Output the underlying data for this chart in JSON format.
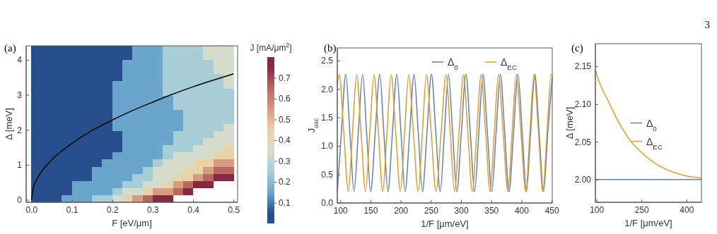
{
  "chart_data": [
    {
      "type": "heatmap",
      "xlabel": "F [eV/μm]",
      "ylabel": "Δ [meV]",
      "clabel": "J [mA/μm$^{2}$]",
      "annotations": [
        "(a)"
      ],
      "x": [
        0.0125,
        0.0375,
        0.0625,
        0.0875,
        0.1125,
        0.1375,
        0.1625,
        0.1875,
        0.2125,
        0.2375,
        0.2625,
        0.2875,
        0.3125,
        0.3375,
        0.3625,
        0.3875,
        0.4125,
        0.4375,
        0.4625,
        0.4875
      ],
      "cells": [
        [
          0.05,
          0.05,
          0.05,
          0.05,
          0.05,
          0.05,
          0.05,
          0.05,
          0.05,
          0.05,
          0.15,
          0.15,
          0.15,
          0.25,
          0.25,
          0.25,
          0.25,
          0.35,
          0.35,
          0.35
        ],
        [
          0.05,
          0.05,
          0.05,
          0.05,
          0.05,
          0.05,
          0.05,
          0.05,
          0.05,
          0.05,
          0.15,
          0.15,
          0.15,
          0.25,
          0.25,
          0.25,
          0.25,
          0.35,
          0.35,
          0.35
        ],
        [
          0.05,
          0.05,
          0.05,
          0.05,
          0.05,
          0.05,
          0.05,
          0.05,
          0.05,
          0.15,
          0.15,
          0.15,
          0.15,
          0.25,
          0.25,
          0.25,
          0.25,
          0.25,
          0.35,
          0.35
        ],
        [
          0.05,
          0.05,
          0.05,
          0.05,
          0.05,
          0.05,
          0.05,
          0.05,
          0.05,
          0.15,
          0.15,
          0.15,
          0.15,
          0.25,
          0.25,
          0.25,
          0.25,
          0.25,
          0.35,
          0.35
        ],
        [
          0.05,
          0.05,
          0.05,
          0.05,
          0.05,
          0.05,
          0.05,
          0.05,
          0.05,
          0.15,
          0.15,
          0.15,
          0.15,
          0.25,
          0.25,
          0.25,
          0.25,
          0.25,
          0.25,
          0.35
        ],
        [
          0.05,
          0.05,
          0.05,
          0.05,
          0.05,
          0.05,
          0.05,
          0.05,
          0.15,
          0.15,
          0.15,
          0.15,
          0.15,
          0.25,
          0.25,
          0.25,
          0.25,
          0.25,
          0.25,
          0.35
        ],
        [
          0.05,
          0.05,
          0.05,
          0.05,
          0.05,
          0.05,
          0.05,
          0.05,
          0.15,
          0.15,
          0.15,
          0.15,
          0.15,
          0.25,
          0.25,
          0.25,
          0.25,
          0.25,
          0.25,
          0.25
        ],
        [
          0.05,
          0.05,
          0.05,
          0.05,
          0.05,
          0.05,
          0.05,
          0.05,
          0.15,
          0.15,
          0.15,
          0.15,
          0.15,
          0.15,
          0.25,
          0.25,
          0.25,
          0.25,
          0.25,
          0.25
        ],
        [
          0.05,
          0.05,
          0.05,
          0.05,
          0.05,
          0.05,
          0.05,
          0.05,
          0.15,
          0.15,
          0.15,
          0.15,
          0.15,
          0.15,
          0.25,
          0.25,
          0.25,
          0.25,
          0.25,
          0.25
        ],
        [
          0.05,
          0.05,
          0.05,
          0.05,
          0.05,
          0.05,
          0.05,
          0.05,
          0.15,
          0.15,
          0.15,
          0.15,
          0.15,
          0.15,
          0.15,
          0.25,
          0.25,
          0.25,
          0.25,
          0.25
        ],
        [
          0.05,
          0.05,
          0.05,
          0.05,
          0.05,
          0.05,
          0.05,
          0.05,
          0.15,
          0.15,
          0.15,
          0.15,
          0.15,
          0.15,
          0.15,
          0.25,
          0.25,
          0.25,
          0.25,
          0.25
        ],
        [
          0.05,
          0.05,
          0.05,
          0.05,
          0.05,
          0.05,
          0.05,
          0.05,
          0.15,
          0.15,
          0.15,
          0.15,
          0.15,
          0.15,
          0.15,
          0.25,
          0.25,
          0.25,
          0.25,
          0.35
        ],
        [
          0.05,
          0.05,
          0.05,
          0.05,
          0.05,
          0.05,
          0.05,
          0.05,
          0.05,
          0.15,
          0.15,
          0.15,
          0.15,
          0.15,
          0.25,
          0.25,
          0.25,
          0.25,
          0.35,
          0.35
        ],
        [
          0.05,
          0.05,
          0.05,
          0.05,
          0.05,
          0.05,
          0.05,
          0.05,
          0.05,
          0.15,
          0.15,
          0.15,
          0.15,
          0.15,
          0.25,
          0.25,
          0.25,
          0.35,
          0.35,
          0.35
        ],
        [
          0.05,
          0.05,
          0.05,
          0.05,
          0.05,
          0.05,
          0.05,
          0.05,
          0.05,
          0.15,
          0.15,
          0.15,
          0.15,
          0.25,
          0.25,
          0.25,
          0.35,
          0.35,
          0.35,
          0.45
        ],
        [
          0.05,
          0.05,
          0.05,
          0.05,
          0.05,
          0.05,
          0.05,
          0.05,
          0.15,
          0.15,
          0.15,
          0.15,
          0.15,
          0.25,
          0.35,
          0.35,
          0.35,
          0.35,
          0.45,
          0.45
        ],
        [
          0.05,
          0.05,
          0.05,
          0.05,
          0.05,
          0.05,
          0.05,
          0.15,
          0.15,
          0.15,
          0.15,
          0.15,
          0.25,
          0.35,
          0.35,
          0.35,
          0.45,
          0.45,
          0.55,
          0.55
        ],
        [
          0.05,
          0.05,
          0.05,
          0.05,
          0.05,
          0.05,
          0.15,
          0.15,
          0.15,
          0.15,
          0.15,
          0.25,
          0.35,
          0.35,
          0.35,
          0.45,
          0.45,
          0.55,
          0.65,
          0.65
        ],
        [
          0.05,
          0.05,
          0.05,
          0.05,
          0.05,
          0.05,
          0.15,
          0.15,
          0.15,
          0.15,
          0.25,
          0.25,
          0.35,
          0.35,
          0.45,
          0.45,
          0.55,
          0.65,
          0.75,
          0.75
        ],
        [
          0.05,
          0.05,
          0.05,
          0.05,
          0.15,
          0.15,
          0.15,
          0.15,
          0.15,
          0.25,
          0.25,
          0.35,
          0.35,
          0.45,
          0.55,
          0.65,
          0.75,
          0.75,
          null,
          null
        ],
        [
          0.05,
          0.05,
          0.05,
          0.05,
          0.15,
          0.15,
          0.15,
          0.15,
          0.25,
          0.35,
          0.35,
          0.45,
          0.55,
          0.55,
          0.65,
          0.75,
          null,
          null,
          null,
          null
        ],
        [
          0.05,
          0.05,
          0.05,
          0.15,
          0.15,
          0.15,
          0.25,
          0.25,
          0.35,
          0.45,
          0.55,
          0.65,
          0.75,
          0.75,
          null,
          null,
          null,
          null,
          null,
          null
        ]
      ],
      "colors": [
        "#264f8b",
        "#6aa6cb",
        "#a7cdd7",
        "#d5dccc",
        "#e9d3a9",
        "#d99b7f",
        "#bb6661",
        "#86283f"
      ],
      "clim": [
        0,
        0.8
      ],
      "cticks": [
        0.1,
        0.2,
        0.3,
        0.4,
        0.5,
        0.6,
        0.7
      ],
      "xlim": [
        -0.013,
        0.51
      ],
      "xticks": [
        {
          "value": 0,
          "label": "0.0"
        },
        0.1,
        0.2,
        0.3,
        0.4,
        0.5
      ],
      "ylim": [
        -0.07,
        4.4
      ],
      "yticks": [
        0,
        1,
        2,
        3,
        4
      ],
      "series": [
        {
          "type": "line",
          "color": "#000000",
          "x": [
            0,
            0.005,
            0.01,
            0.02,
            0.04,
            0.06,
            0.08,
            0.1,
            0.15,
            0.2,
            0.25,
            0.3,
            0.35,
            0.4,
            0.45,
            0.5
          ],
          "values": [
            0,
            0.36,
            0.51,
            0.72,
            1.02,
            1.25,
            1.44,
            1.61,
            1.98,
            2.28,
            2.55,
            2.79,
            3.02,
            3.23,
            3.42,
            3.6
          ]
        }
      ]
    },
    {
      "type": "line",
      "xlabel": "1/F [μm/eV]",
      "ylabel": "J$_{osc}$",
      "annotations": [
        "(b)"
      ],
      "legend": "top right",
      "xlim": [
        95,
        451
      ],
      "xticks": [
        100,
        150,
        200,
        250,
        300,
        350,
        400,
        450
      ],
      "ylim": [
        0,
        2.72
      ],
      "yticks": [
        {
          "value": 0,
          "label": "0.0"
        },
        0.5,
        {
          "value": 1,
          "label": "1.0"
        },
        1.5,
        {
          "value": 2,
          "label": "2.0"
        },
        2.5
      ],
      "series": [
        {
          "name": "Δ$_{0}$",
          "color": "#5e81b5",
          "x": [
            95.2,
            101.7,
            109.0,
            115.9,
            122.7,
            129.8,
            136.9,
            143.6,
            150.3,
            157.8,
            165.3,
            172.1,
            178.9,
            186.3,
            193.6,
            200.5,
            207.3,
            214.8,
            222.2,
            229.1,
            236.0,
            243.5,
            250.9,
            258.2,
            265.5,
            272.4,
            279.2,
            286.1,
            293.0,
            300.5,
            308.0,
            315.3,
            322.5,
            329.4,
            336.3,
            343.6,
            350.9,
            358.0,
            365.0,
            372.3,
            379.5,
            386.9,
            394.2,
            401.3,
            408.3,
            415.2,
            422.0,
            429.3,
            436.6,
            443.6,
            451
          ],
          "values": [
            0.21,
            1.23,
            2.26,
            1.23,
            0.2,
            1.23,
            2.26,
            1.23,
            0.2,
            1.23,
            2.26,
            1.23,
            0.2,
            1.23,
            2.26,
            1.23,
            0.2,
            1.23,
            2.26,
            1.23,
            0.2,
            1.23,
            2.26,
            1.23,
            0.2,
            1.23,
            2.26,
            1.23,
            0.2,
            1.23,
            2.26,
            1.23,
            0.2,
            1.23,
            2.26,
            1.23,
            0.2,
            1.23,
            2.26,
            1.23,
            0.2,
            1.23,
            2.26,
            1.23,
            0.2,
            1.23,
            2.26,
            1.23,
            0.2,
            1.23,
            2.2
          ]
        },
        {
          "name": "Δ$_{EC}$",
          "color": "#e19c24",
          "x": [
            95.2,
            98.3,
            105.8,
            113.3,
            120.2,
            127.0,
            134.4,
            141.7,
            148.8,
            155.8,
            163.1,
            170.3,
            177.2,
            184.1,
            191.8,
            199.5,
            206.4,
            213.2,
            221.1,
            229.0,
            235.9,
            242.7,
            250.6,
            258.5,
            266.9,
            275.3,
            282.2,
            289.1,
            296.6,
            304.0,
            311.3,
            318.6,
            325.9,
            333.2,
            340.7,
            348.1,
            355.0,
            361.8,
            369.7,
            377.6,
            384.5,
            391.3,
            399.2,
            407.1,
            414.0,
            420.8,
            428.2,
            435.5,
            442.3,
            449.1,
            451
          ],
          "values": [
            2.1,
            2.25,
            1.23,
            0.2,
            1.23,
            2.25,
            1.23,
            0.2,
            1.23,
            2.25,
            1.23,
            0.2,
            1.23,
            2.25,
            1.23,
            0.2,
            1.23,
            2.25,
            1.23,
            0.2,
            1.23,
            2.25,
            1.23,
            0.2,
            1.23,
            2.25,
            1.23,
            0.2,
            1.23,
            2.25,
            1.23,
            0.2,
            1.23,
            2.25,
            1.23,
            0.2,
            1.23,
            2.25,
            1.23,
            0.2,
            1.23,
            2.25,
            1.23,
            0.2,
            1.23,
            2.25,
            1.23,
            0.2,
            1.23,
            2.25,
            2.23
          ]
        }
      ]
    },
    {
      "type": "line",
      "xlabel": "1/F [μm/eV]",
      "ylabel": "Δ [meV]",
      "annotations": [
        "(c)",
        "3"
      ],
      "legend": "right",
      "xlim": [
        96,
        450
      ],
      "xticks": [
        100,
        250,
        400
      ],
      "ylim": [
        1.97,
        2.18
      ],
      "yticks": [
        {
          "value": 2,
          "label": "2.00"
        },
        2.05,
        {
          "value": 2.1,
          "label": "2.10"
        },
        2.15
      ],
      "series": [
        {
          "name": "Δ$_{0}$",
          "color": "#5e81b5",
          "x": [
            96,
            450
          ],
          "values": [
            2.0,
            2.0
          ]
        },
        {
          "name": "Δ$_{EC}$",
          "color": "#e19c24",
          "x": [
            96,
            110,
            131.6,
            150,
            171,
            190,
            210,
            250,
            290,
            330,
            370,
            410,
            450
          ],
          "values": [
            2.145,
            2.128,
            2.11,
            2.095,
            2.078,
            2.065,
            2.053,
            2.036,
            2.023,
            2.014,
            2.008,
            2.004,
            2.002
          ]
        }
      ]
    }
  ]
}
